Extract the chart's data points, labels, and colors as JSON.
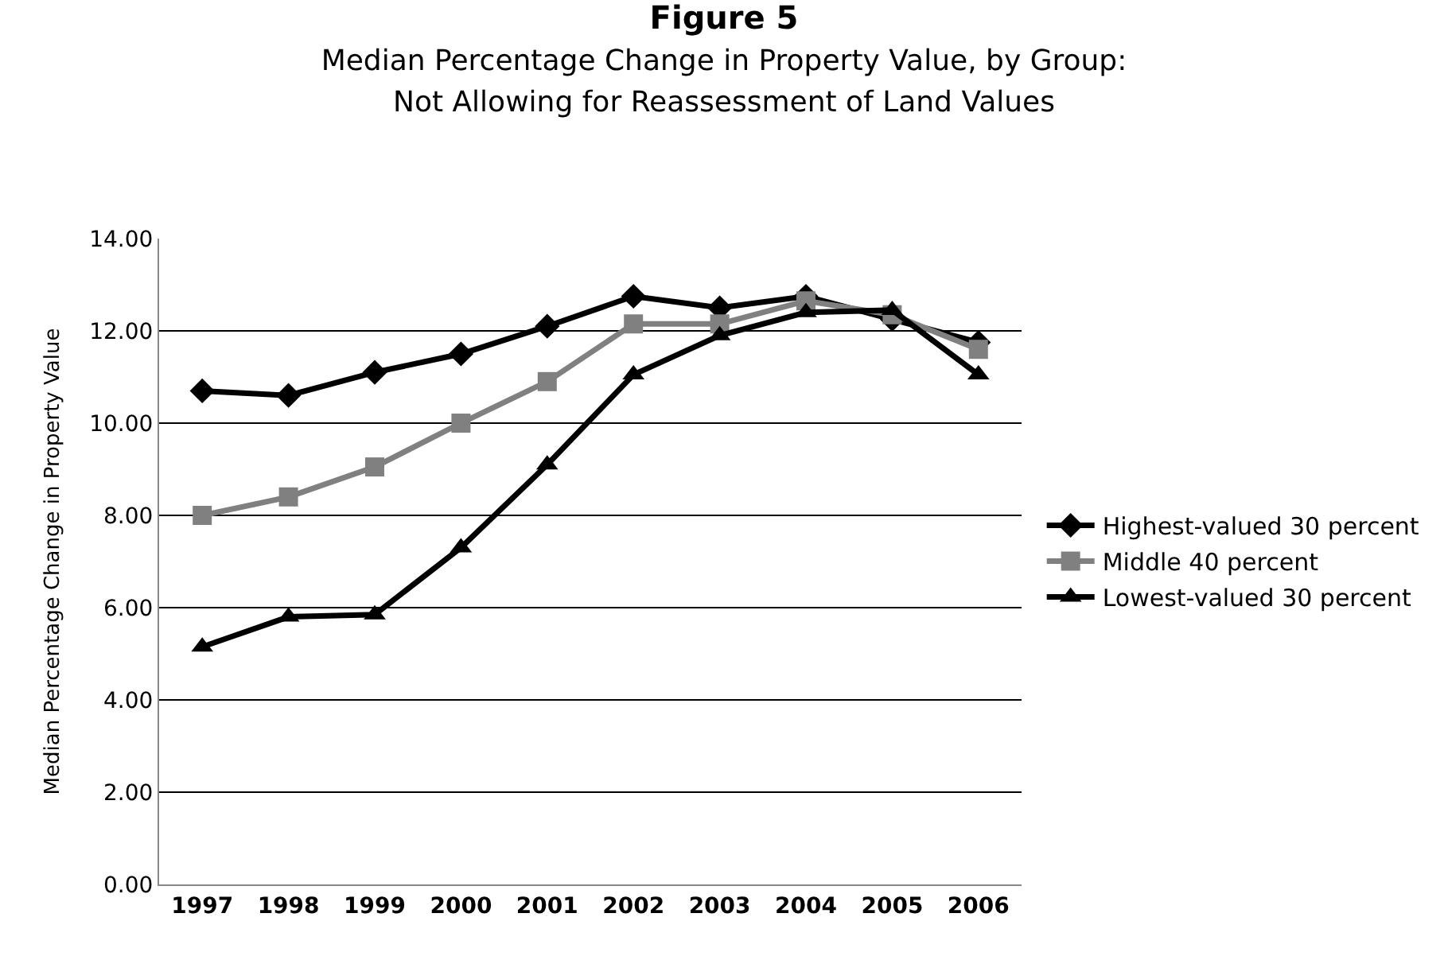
{
  "chart_data": {
    "type": "line",
    "title": "Figure 5",
    "subtitle": "Median Percentage Change in Property Value, by Group:\nNot Allowing for Reassessment of Land Values",
    "ylabel": "Median Percentage Change in Property Value",
    "categories": [
      "1997",
      "1998",
      "1999",
      "2000",
      "2001",
      "2002",
      "2003",
      "2004",
      "2005",
      "2006"
    ],
    "series": [
      {
        "name": "Highest-valued 30 percent",
        "color": "#000000",
        "marker": "diamond",
        "values": [
          10.7,
          10.6,
          11.1,
          11.5,
          12.1,
          12.75,
          12.5,
          12.75,
          12.25,
          11.75
        ]
      },
      {
        "name": "Middle 40 percent",
        "color": "#808080",
        "marker": "square",
        "values": [
          8.0,
          8.4,
          9.05,
          10.0,
          10.9,
          12.15,
          12.15,
          12.65,
          12.35,
          11.6
        ]
      },
      {
        "name": "Lowest-valued 30 percent",
        "color": "#000000",
        "marker": "triangle",
        "values": [
          5.15,
          5.8,
          5.85,
          7.3,
          9.1,
          11.05,
          11.9,
          12.4,
          12.45,
          11.05
        ]
      }
    ],
    "ylim": [
      0,
      14
    ],
    "yticks": [
      {
        "value": 0,
        "label": "0.00"
      },
      {
        "value": 2,
        "label": "2.00"
      },
      {
        "value": 4,
        "label": "4.00"
      },
      {
        "value": 6,
        "label": "6.00"
      },
      {
        "value": 8,
        "label": "8.00"
      },
      {
        "value": 10,
        "label": "10.00"
      },
      {
        "value": 12,
        "label": "12.00"
      },
      {
        "value": 14,
        "label": "14.00"
      }
    ],
    "grid": "y",
    "legend": "right",
    "line_style": "solid"
  }
}
